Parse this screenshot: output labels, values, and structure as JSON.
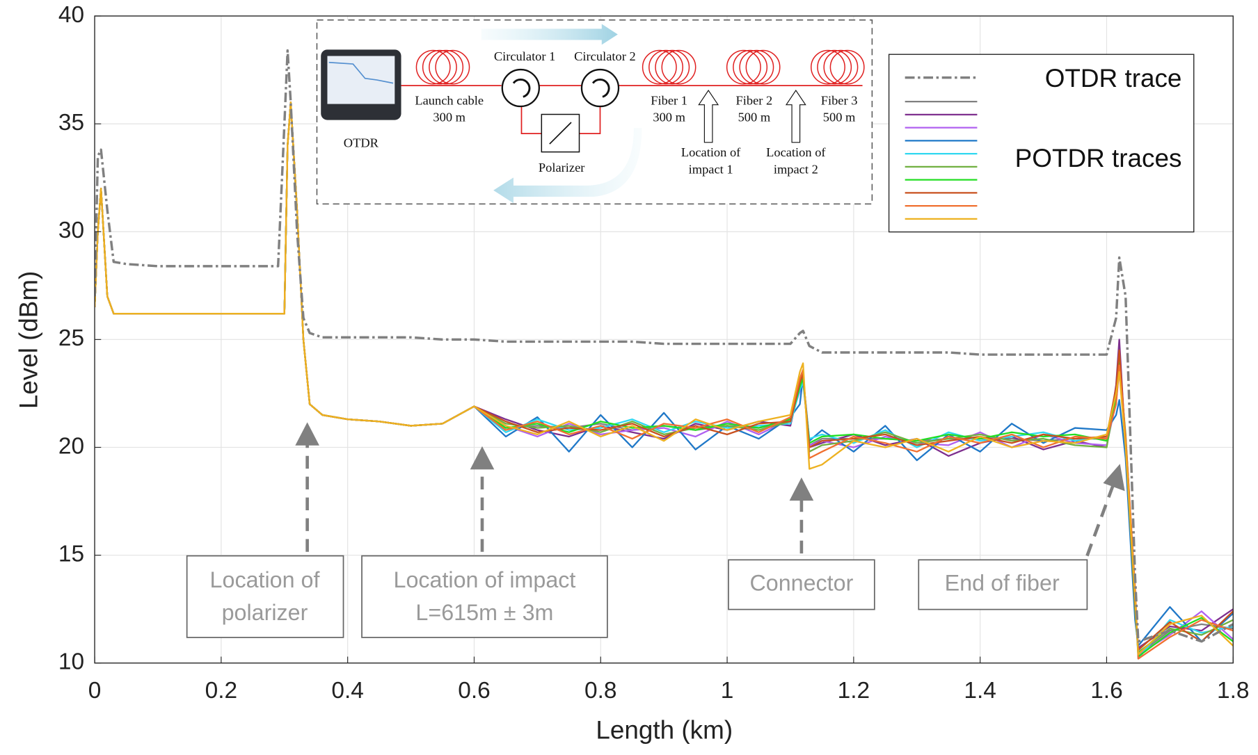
{
  "chart_data": {
    "type": "line",
    "xlabel": "Length (km)",
    "ylabel": "Level (dBm)",
    "xlim": [
      0,
      1.8
    ],
    "ylim": [
      10,
      40
    ],
    "xticks": [
      0,
      0.2,
      0.4,
      0.6,
      0.8,
      1,
      1.2,
      1.4,
      1.6,
      1.8
    ],
    "yticks": [
      10,
      15,
      20,
      25,
      30,
      35,
      40
    ],
    "grid": true,
    "legend": "upper right",
    "x": [
      0,
      0.005,
      0.01,
      0.02,
      0.03,
      0.05,
      0.1,
      0.2,
      0.29,
      0.3,
      0.305,
      0.31,
      0.32,
      0.33,
      0.34,
      0.36,
      0.4,
      0.45,
      0.5,
      0.55,
      0.6,
      0.65,
      0.7,
      0.75,
      0.8,
      0.85,
      0.9,
      0.95,
      1.0,
      1.05,
      1.1,
      1.115,
      1.12,
      1.13,
      1.15,
      1.2,
      1.25,
      1.3,
      1.35,
      1.4,
      1.45,
      1.5,
      1.55,
      1.6,
      1.615,
      1.62,
      1.63,
      1.645,
      1.65,
      1.7,
      1.75,
      1.8
    ],
    "series": [
      {
        "name": "OTDR trace",
        "color": "#808080",
        "dashed": true,
        "values": [
          27,
          33.5,
          33.8,
          31,
          28.6,
          28.5,
          28.4,
          28.4,
          28.4,
          35,
          38.4,
          36,
          30,
          26,
          25.3,
          25.1,
          25.1,
          25.1,
          25.1,
          25.0,
          25.0,
          24.9,
          24.9,
          24.9,
          24.9,
          24.9,
          24.8,
          24.8,
          24.8,
          24.8,
          24.8,
          25.3,
          25.4,
          24.7,
          24.4,
          24.4,
          24.4,
          24.4,
          24.4,
          24.3,
          24.3,
          24.3,
          24.3,
          24.3,
          26,
          28.8,
          27,
          14,
          11,
          11.5,
          11,
          11.8
        ]
      },
      {
        "name": "POTDR traces",
        "color": "#808080",
        "values": [
          26.5,
          30,
          32,
          27,
          26.2,
          26.2,
          26.2,
          26.2,
          26.2,
          26.2,
          34,
          36,
          31,
          25,
          22,
          21.5,
          21.3,
          21.2,
          21.0,
          21.1,
          21.9,
          20.9,
          21.0,
          20.9,
          21.1,
          20.8,
          21.0,
          20.8,
          21.0,
          20.9,
          21.2,
          22.8,
          23.2,
          20.1,
          20.4,
          20.4,
          20.4,
          20.3,
          20.4,
          20.4,
          20.4,
          20.3,
          20.4,
          20.4,
          22.3,
          23.8,
          20.3,
          12.9,
          10.4,
          11.5,
          11.8,
          11.6
        ]
      },
      {
        "color": "#7e2f8e",
        "values": [
          26.5,
          30,
          32,
          27,
          26.2,
          26.2,
          26.2,
          26.2,
          26.2,
          26.2,
          34,
          36,
          31,
          25,
          22,
          21.5,
          21.3,
          21.2,
          21.0,
          21.1,
          21.9,
          21.3,
          20.8,
          20.5,
          21.0,
          20.7,
          20.4,
          21.1,
          20.8,
          21.2,
          21.0,
          22.9,
          23.4,
          20.0,
          20.2,
          20.6,
          20.1,
          20.4,
          19.6,
          20.2,
          20.5,
          19.9,
          20.3,
          20.0,
          22.9,
          25.0,
          20.0,
          12.9,
          10.7,
          11.7,
          11.5,
          12.5
        ]
      },
      {
        "color": "#b060f0",
        "values": [
          26.5,
          30,
          32,
          27,
          26.2,
          26.2,
          26.2,
          26.2,
          26.2,
          26.2,
          34,
          36,
          31,
          25,
          22,
          21.5,
          21.3,
          21.2,
          21.0,
          21.1,
          21.9,
          21.0,
          20.5,
          21.1,
          20.6,
          20.8,
          20.9,
          20.5,
          21.2,
          20.6,
          21.3,
          22.6,
          23.1,
          20.1,
          20.3,
          20.0,
          20.5,
          20.2,
          20.1,
          20.7,
          20.0,
          20.6,
          20.2,
          20.1,
          22.1,
          23.6,
          20.1,
          12.6,
          10.4,
          11.3,
          12.4,
          11.1
        ]
      },
      {
        "color": "#1f78c8",
        "values": [
          26.5,
          30,
          32,
          27,
          26.2,
          26.2,
          26.2,
          26.2,
          26.2,
          26.2,
          34,
          36,
          31,
          25,
          22,
          21.5,
          21.3,
          21.2,
          21.0,
          21.1,
          21.9,
          20.5,
          21.4,
          19.8,
          21.5,
          20.0,
          21.6,
          19.9,
          21.0,
          20.4,
          21.4,
          22.0,
          23.3,
          20.3,
          20.8,
          19.8,
          21.0,
          19.4,
          20.6,
          19.8,
          21.1,
          20.2,
          20.9,
          20.8,
          21.5,
          22.2,
          19.5,
          12.0,
          10.8,
          12.6,
          11.0,
          12.3
        ]
      },
      {
        "color": "#30d8f0",
        "values": [
          26.5,
          30,
          32,
          27,
          26.2,
          26.2,
          26.2,
          26.2,
          26.2,
          26.2,
          34,
          36,
          31,
          25,
          22,
          21.5,
          21.3,
          21.2,
          21.0,
          21.1,
          21.9,
          20.7,
          21.3,
          20.8,
          20.9,
          21.3,
          20.7,
          21.2,
          20.9,
          21.0,
          21.1,
          22.7,
          23.0,
          20.4,
          20.6,
          20.2,
          20.8,
          20.0,
          20.7,
          20.3,
          20.5,
          20.7,
          20.3,
          20.5,
          22.6,
          24.2,
          20.4,
          13.0,
          10.2,
          12.0,
          11.4,
          11.7
        ]
      },
      {
        "color": "#70b040",
        "values": [
          26.5,
          30,
          32,
          27,
          26.2,
          26.2,
          26.2,
          26.2,
          26.2,
          26.2,
          34,
          36,
          31,
          25,
          22,
          21.5,
          21.3,
          21.2,
          21.0,
          21.1,
          21.9,
          21.1,
          20.9,
          21.0,
          20.7,
          21.2,
          20.6,
          20.9,
          21.0,
          20.8,
          21.2,
          22.9,
          23.3,
          19.8,
          20.1,
          20.3,
          20.7,
          20.2,
          20.4,
          20.6,
          20.3,
          20.4,
          20.1,
          20.0,
          22.4,
          24.0,
          20.2,
          12.5,
          10.5,
          11.6,
          11.3,
          12.0
        ]
      },
      {
        "color": "#22dd22",
        "values": [
          26.5,
          30,
          32,
          27,
          26.2,
          26.2,
          26.2,
          26.2,
          26.2,
          26.2,
          34,
          36,
          31,
          25,
          22,
          21.5,
          21.3,
          21.2,
          21.0,
          21.1,
          21.9,
          20.9,
          21.1,
          20.7,
          21.2,
          20.9,
          21.0,
          20.8,
          21.1,
          20.9,
          21.3,
          22.8,
          23.2,
          20.2,
          20.5,
          20.6,
          20.4,
          20.3,
          20.6,
          20.4,
          20.7,
          20.5,
          20.6,
          20.3,
          22.2,
          23.9,
          20.6,
          13.2,
          10.3,
          11.4,
          12.1,
          11.0
        ]
      },
      {
        "color": "#c8501e",
        "values": [
          26.5,
          30,
          32,
          27,
          26.2,
          26.2,
          26.2,
          26.2,
          26.2,
          26.2,
          34,
          36,
          31,
          25,
          22,
          21.5,
          21.3,
          21.2,
          21.0,
          21.1,
          21.9,
          21.2,
          20.7,
          20.9,
          20.8,
          21.1,
          20.5,
          21.0,
          20.6,
          21.1,
          21.2,
          23.0,
          23.4,
          20.0,
          20.3,
          20.4,
          20.6,
          20.1,
          20.3,
          20.5,
          20.2,
          20.6,
          20.4,
          20.5,
          22.8,
          24.5,
          20.3,
          12.8,
          10.6,
          11.9,
          11.0,
          12.4
        ]
      },
      {
        "color": "#f07030",
        "values": [
          26.5,
          30,
          32,
          27,
          26.2,
          26.2,
          26.2,
          26.2,
          26.2,
          26.2,
          34,
          36,
          31,
          25,
          22,
          21.5,
          21.3,
          21.2,
          21.0,
          21.1,
          21.9,
          20.8,
          21.2,
          20.6,
          21.0,
          20.4,
          21.1,
          20.9,
          21.3,
          20.7,
          21.4,
          23.2,
          23.6,
          19.5,
          19.8,
          20.5,
          20.2,
          19.8,
          20.5,
          20.2,
          20.6,
          20.0,
          20.5,
          20.4,
          22.0,
          23.8,
          20.5,
          13.5,
          10.2,
          11.2,
          12.0,
          11.5
        ]
      },
      {
        "color": "#edb120",
        "values": [
          26.5,
          30,
          32,
          27,
          26.2,
          26.2,
          26.2,
          26.2,
          26.2,
          26.2,
          34,
          36,
          31,
          25,
          22,
          21.5,
          21.3,
          21.2,
          21.0,
          21.1,
          21.9,
          21.0,
          20.6,
          21.2,
          20.5,
          21.0,
          20.3,
          21.3,
          20.8,
          21.2,
          21.5,
          23.5,
          23.9,
          19.0,
          19.2,
          20.3,
          20.0,
          20.4,
          19.8,
          20.5,
          20.0,
          20.3,
          20.2,
          20.6,
          22.5,
          23.5,
          20,
          13,
          10.4,
          11.8,
          12.2,
          10.8
        ]
      }
    ],
    "annotations": [
      {
        "lines": [
          "Location of",
          "polarizer"
        ]
      },
      {
        "lines": [
          "Location of impact",
          "L=615m ± 3m"
        ]
      },
      {
        "lines": [
          "Connector"
        ]
      },
      {
        "lines": [
          "End of fiber"
        ]
      }
    ]
  },
  "inset": {
    "otdr": "OTDR",
    "launch_cable": [
      "Launch cable",
      "300 m"
    ],
    "circulator_1": "Circulator 1",
    "circulator_2": "Circulator 2",
    "polarizer": "Polarizer",
    "fiber_1": [
      "Fiber 1",
      "300 m"
    ],
    "fiber_2": [
      "Fiber 2",
      "500 m"
    ],
    "fiber_3": [
      "Fiber 3",
      "500 m"
    ],
    "impact_1": [
      "Location of",
      "impact 1"
    ],
    "impact_2": [
      "Location of",
      "impact 2"
    ]
  }
}
